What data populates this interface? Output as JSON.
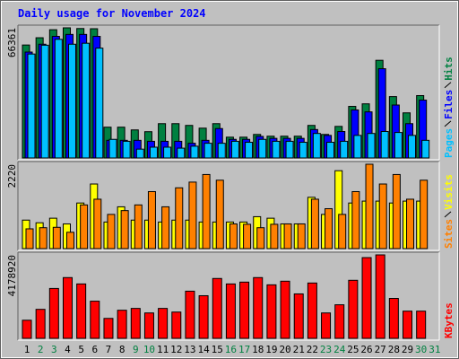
{
  "chart_data": [
    {
      "type": "bar",
      "title": "Daily usage for November 2024",
      "series": [
        {
          "name": "Hits",
          "color": "#008040",
          "values": [
            57600,
            61300,
            65400,
            66361,
            66000,
            65900,
            15700,
            15700,
            14300,
            13400,
            17500,
            17500,
            16600,
            15200,
            17500,
            10600,
            10600,
            12000,
            11100,
            11100,
            11100,
            16600,
            12000,
            16100,
            26300,
            27600,
            49800,
            31300,
            23000,
            31800,
            null
          ]
        },
        {
          "name": "Files",
          "color": "#0000ff",
          "values": [
            54000,
            58000,
            62000,
            63000,
            63000,
            62000,
            9000,
            9000,
            9000,
            8500,
            8500,
            8500,
            7500,
            9000,
            15000,
            9500,
            9500,
            11000,
            10000,
            10000,
            10000,
            14500,
            11500,
            13500,
            24500,
            23500,
            45500,
            27000,
            17500,
            29500,
            null
          ]
        },
        {
          "name": "Pages",
          "color": "#00c0ff",
          "values": [
            53000,
            57500,
            60500,
            58000,
            58500,
            56000,
            9500,
            8500,
            4500,
            5500,
            5500,
            5000,
            6000,
            7500,
            7500,
            8500,
            8000,
            9500,
            8500,
            8500,
            8000,
            12500,
            8000,
            8500,
            11500,
            12500,
            13500,
            13000,
            11500,
            9000,
            null
          ]
        }
      ],
      "ylim": [
        0,
        66361
      ],
      "yticks": [
        66361
      ],
      "grid": false
    },
    {
      "type": "bar",
      "series": [
        {
          "name": "Visits",
          "color": "#ffff00",
          "values": [
            750,
            680,
            800,
            650,
            1200,
            1700,
            700,
            1100,
            750,
            750,
            700,
            750,
            750,
            700,
            700,
            700,
            700,
            840,
            800,
            650,
            650,
            1350,
            900,
            2050,
            1200,
            1250,
            1250,
            1200,
            1250,
            1250,
            null
          ]
        },
        {
          "name": "Sites",
          "color": "#ff8000",
          "values": [
            520,
            550,
            560,
            430,
            1150,
            1300,
            900,
            1000,
            1150,
            1500,
            1100,
            1600,
            1750,
            1950,
            1800,
            650,
            640,
            550,
            640,
            650,
            650,
            1300,
            1050,
            900,
            1500,
            2220,
            1700,
            1950,
            1300,
            1800,
            null
          ]
        }
      ],
      "ylim": [
        0,
        2220
      ],
      "yticks": [
        2220
      ],
      "grid": false
    },
    {
      "type": "bar",
      "categories": [
        "1",
        "2",
        "3",
        "4",
        "5",
        "6",
        "7",
        "8",
        "9",
        "10",
        "11",
        "12",
        "13",
        "14",
        "15",
        "16",
        "17",
        "18",
        "19",
        "20",
        "21",
        "22",
        "23",
        "24",
        "25",
        "26",
        "27",
        "28",
        "29",
        "30",
        "31"
      ],
      "category_colors": [
        "#000000",
        "#008040",
        "#008040",
        "#000000",
        "#000000",
        "#000000",
        "#000000",
        "#000000",
        "#008040",
        "#008040",
        "#000000",
        "#000000",
        "#000000",
        "#000000",
        "#000000",
        "#008040",
        "#008040",
        "#000000",
        "#000000",
        "#000000",
        "#000000",
        "#000000",
        "#008040",
        "#008040",
        "#000000",
        "#000000",
        "#000000",
        "#000000",
        "#000000",
        "#008040",
        "#008040"
      ],
      "series": [
        {
          "name": "KBytes",
          "color": "#ff0000",
          "values": [
            908000,
            1453000,
            2498000,
            3043000,
            2725000,
            1862000,
            999000,
            1408000,
            1499000,
            1272000,
            1499000,
            1317000,
            2362000,
            2135000,
            2998000,
            2725000,
            2816000,
            3043000,
            2680000,
            2862000,
            2226000,
            2771000,
            1272000,
            1681000,
            2907000,
            4043000,
            4178920,
            1999000,
            1363000,
            1363000,
            null
          ]
        }
      ],
      "ylim": [
        0,
        4178920
      ],
      "yticks": [
        4178920
      ],
      "grid": false
    }
  ]
}
